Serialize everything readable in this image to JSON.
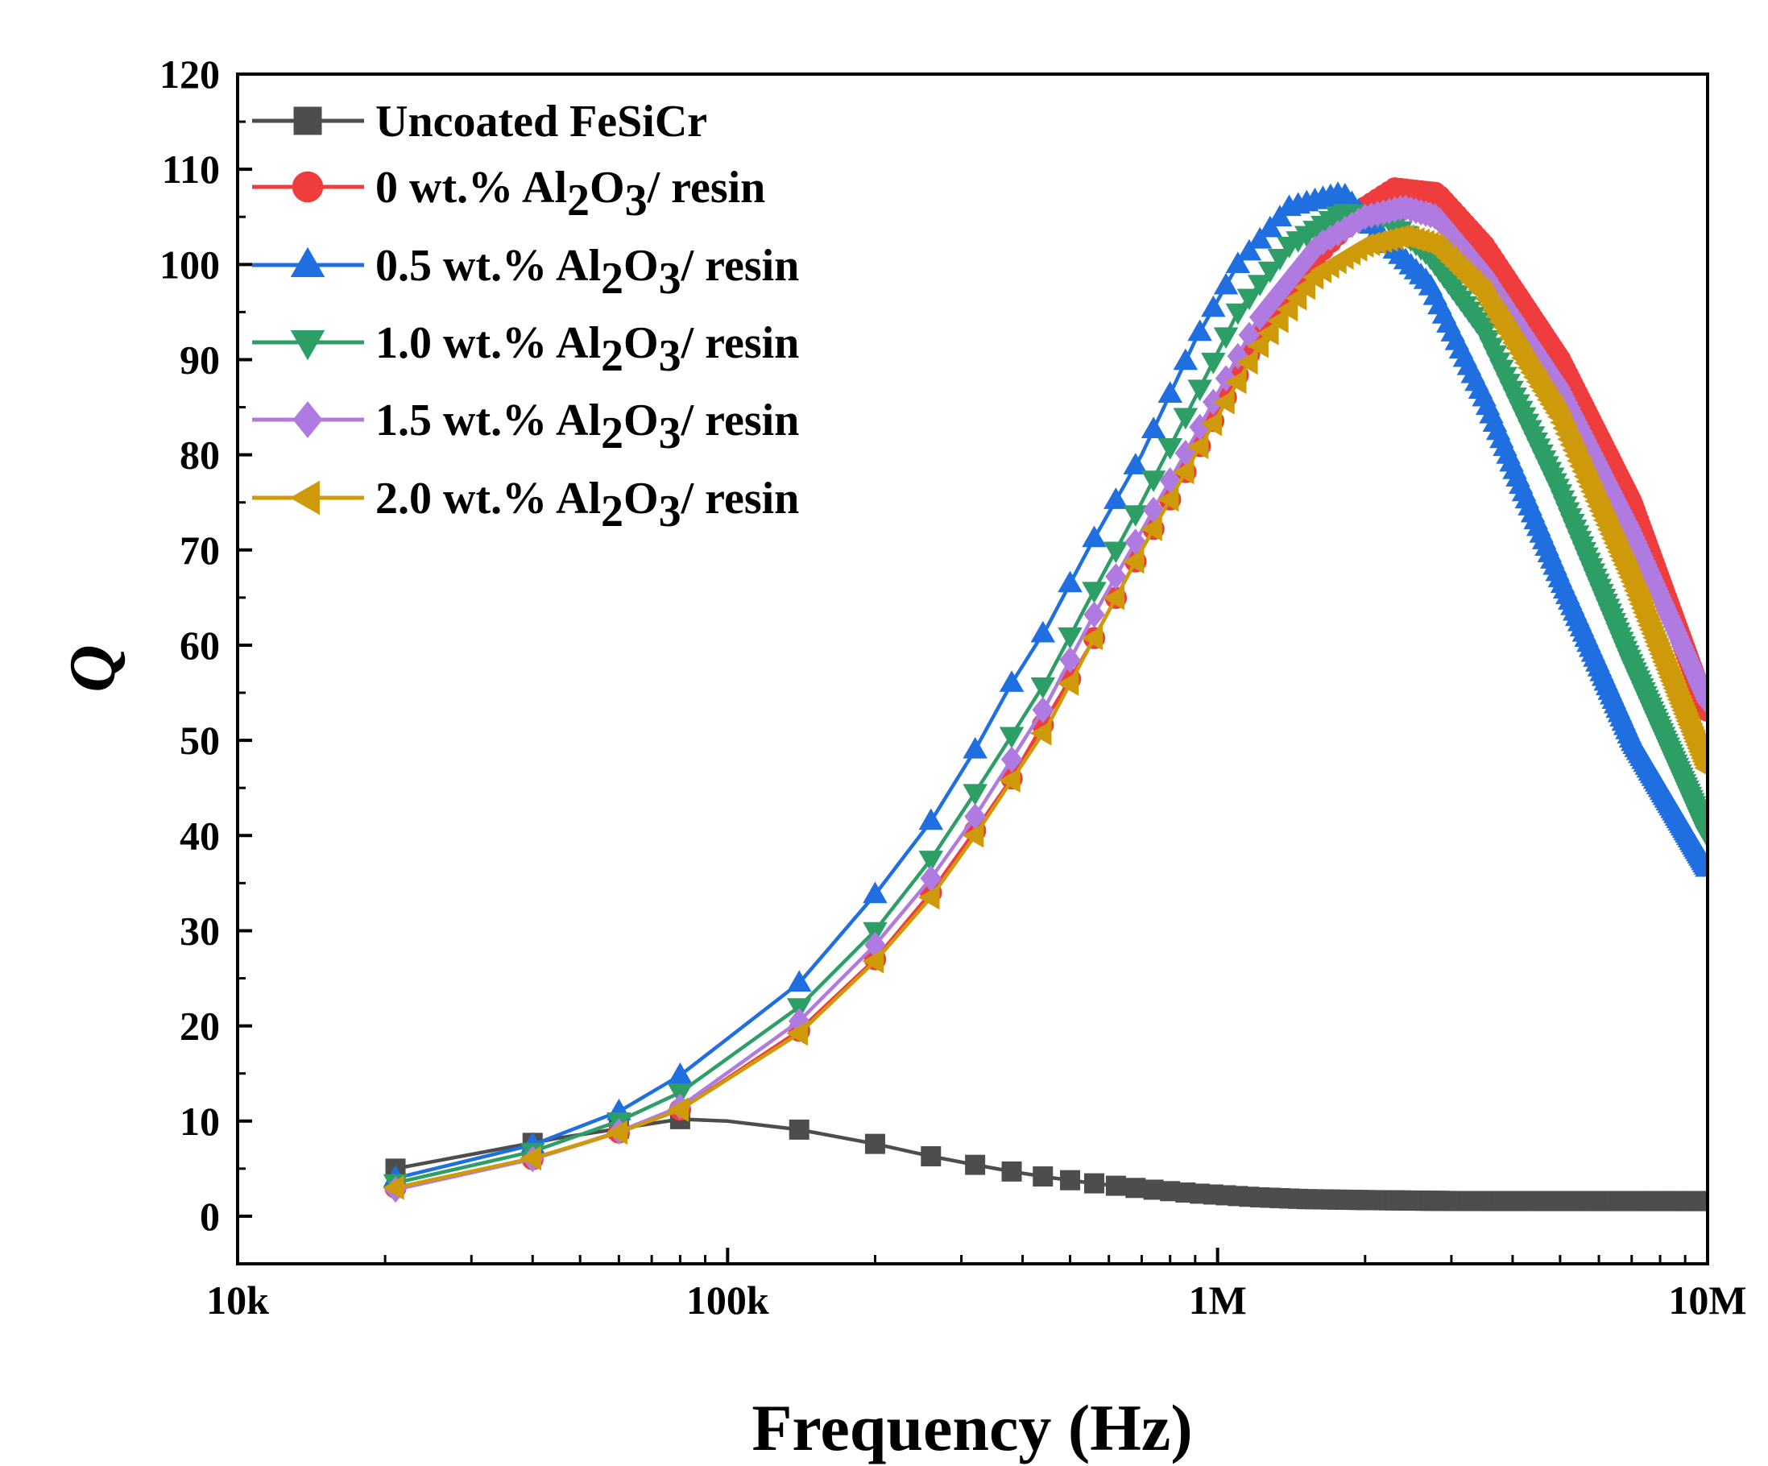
{
  "chart_data": {
    "type": "line",
    "xscale": "log",
    "xlabel": "Frequency (Hz)",
    "ylabel": "Q",
    "xlim": [
      10000,
      10000000
    ],
    "ylim": [
      -5,
      120
    ],
    "x_ticks": [
      {
        "value": 10000,
        "label": "10k"
      },
      {
        "value": 100000,
        "label": "100k"
      },
      {
        "value": 1000000,
        "label": "1M"
      },
      {
        "value": 10000000,
        "label": "10M"
      }
    ],
    "y_ticks": [
      0,
      10,
      20,
      30,
      40,
      50,
      60,
      70,
      80,
      90,
      100,
      110,
      120
    ],
    "legend_position": "top-left",
    "series": [
      {
        "name": "Uncoated FeSiCr",
        "legend": {
          "prefix": "Uncoated FeSiCr",
          "sub1": "",
          "mid": "",
          "sub2": "",
          "suffix": ""
        },
        "color": "#4d4d4d",
        "marker": "square",
        "x": [
          21000,
          45000,
          80000,
          100000,
          140000,
          200000,
          260000,
          320000,
          380000,
          450000,
          550000,
          700000,
          900000,
          1200000,
          1500000,
          2000000,
          3000000,
          5000000,
          7000000,
          10000000
        ],
        "y": [
          5.0,
          8.2,
          10.2,
          10.0,
          9.1,
          7.6,
          6.3,
          5.4,
          4.7,
          4.1,
          3.5,
          2.9,
          2.4,
          2.0,
          1.8,
          1.7,
          1.6,
          1.6,
          1.6,
          1.6
        ]
      },
      {
        "name": "0 wt.% Al2O3/ resin",
        "legend": {
          "prefix": "0 wt.% Al",
          "sub1": "2",
          "mid": "O",
          "sub2": "3",
          "suffix": "/ resin"
        },
        "color": "#ef3c3c",
        "marker": "circle",
        "x": [
          21000,
          40000,
          60000,
          80000,
          140000,
          200000,
          260000,
          320000,
          380000,
          450000,
          550000,
          700000,
          900000,
          1200000,
          1600000,
          2000000,
          2300000,
          2800000,
          3500000,
          5000000,
          7000000,
          10000000
        ],
        "y": [
          3.0,
          6.0,
          8.8,
          11.2,
          19.5,
          27.0,
          34.0,
          40.5,
          46.0,
          52.5,
          60.0,
          70.0,
          80.0,
          92.0,
          101.0,
          106.0,
          108.0,
          107.5,
          102.0,
          90.0,
          75.0,
          53.0
        ]
      },
      {
        "name": "0.5 wt.% Al2O3/ resin",
        "legend": {
          "prefix": "0.5 wt.% Al",
          "sub1": "2",
          "mid": "O",
          "sub2": "3",
          "suffix": "/ resin"
        },
        "color": "#1f6fe0",
        "marker": "triangle-up",
        "x": [
          21000,
          40000,
          60000,
          80000,
          140000,
          200000,
          260000,
          320000,
          380000,
          450000,
          550000,
          700000,
          900000,
          1100000,
          1400000,
          1800000,
          2200000,
          2700000,
          3500000,
          5000000,
          7000000,
          10000000
        ],
        "y": [
          4.0,
          7.5,
          11.0,
          14.8,
          24.5,
          33.8,
          41.5,
          49.0,
          56.0,
          62.0,
          70.5,
          80.0,
          92.0,
          100.0,
          106.0,
          107.5,
          102.5,
          98.0,
          86.0,
          67.0,
          50.0,
          36.5
        ]
      },
      {
        "name": "1.0 wt.% Al2O3/ resin",
        "legend": {
          "prefix": "1.0 wt.% Al",
          "sub1": "2",
          "mid": "O",
          "sub2": "3",
          "suffix": "/ resin"
        },
        "color": "#2e9e67",
        "marker": "triangle-down",
        "x": [
          21000,
          40000,
          60000,
          80000,
          140000,
          200000,
          260000,
          320000,
          380000,
          450000,
          550000,
          700000,
          900000,
          1100000,
          1400000,
          1800000,
          2200000,
          2700000,
          3500000,
          5000000,
          7000000,
          10000000
        ],
        "y": [
          3.5,
          6.8,
          10.0,
          13.0,
          22.0,
          30.0,
          37.5,
          44.5,
          50.5,
          56.5,
          65.0,
          75.0,
          86.0,
          95.0,
          102.0,
          105.5,
          105.0,
          101.0,
          93.0,
          76.0,
          58.0,
          40.0
        ]
      },
      {
        "name": "1.5 wt.% Al2O3/ resin",
        "legend": {
          "prefix": "1.5 wt.% Al",
          "sub1": "2",
          "mid": "O",
          "sub2": "3",
          "suffix": "/ resin"
        },
        "color": "#b07be0",
        "marker": "diamond",
        "x": [
          21000,
          40000,
          60000,
          80000,
          140000,
          200000,
          260000,
          320000,
          380000,
          450000,
          550000,
          700000,
          900000,
          1200000,
          1600000,
          2000000,
          2400000,
          2800000,
          3500000,
          5000000,
          7000000,
          10000000
        ],
        "y": [
          2.8,
          6.0,
          8.9,
          11.5,
          20.5,
          28.5,
          35.5,
          42.0,
          48.0,
          54.0,
          62.5,
          72.0,
          82.0,
          94.0,
          102.0,
          105.0,
          106.0,
          105.0,
          99.0,
          87.0,
          72.0,
          54.0
        ]
      },
      {
        "name": "2.0 wt.% Al2O3/ resin",
        "legend": {
          "prefix": "2.0 wt.% Al",
          "sub1": "2",
          "mid": "O",
          "sub2": "3",
          "suffix": "/ resin"
        },
        "color": "#cf9a0a",
        "marker": "triangle-left",
        "x": [
          21000,
          40000,
          60000,
          80000,
          140000,
          200000,
          260000,
          320000,
          380000,
          450000,
          550000,
          700000,
          900000,
          1200000,
          1600000,
          2000000,
          2400000,
          2800000,
          3500000,
          5000000,
          7000000,
          10000000
        ],
        "y": [
          3.0,
          6.1,
          8.8,
          11.2,
          19.2,
          26.8,
          33.5,
          40.0,
          45.8,
          51.5,
          60.0,
          70.0,
          80.0,
          91.0,
          99.0,
          102.0,
          103.0,
          102.0,
          97.0,
          84.0,
          67.0,
          47.0
        ]
      }
    ]
  }
}
